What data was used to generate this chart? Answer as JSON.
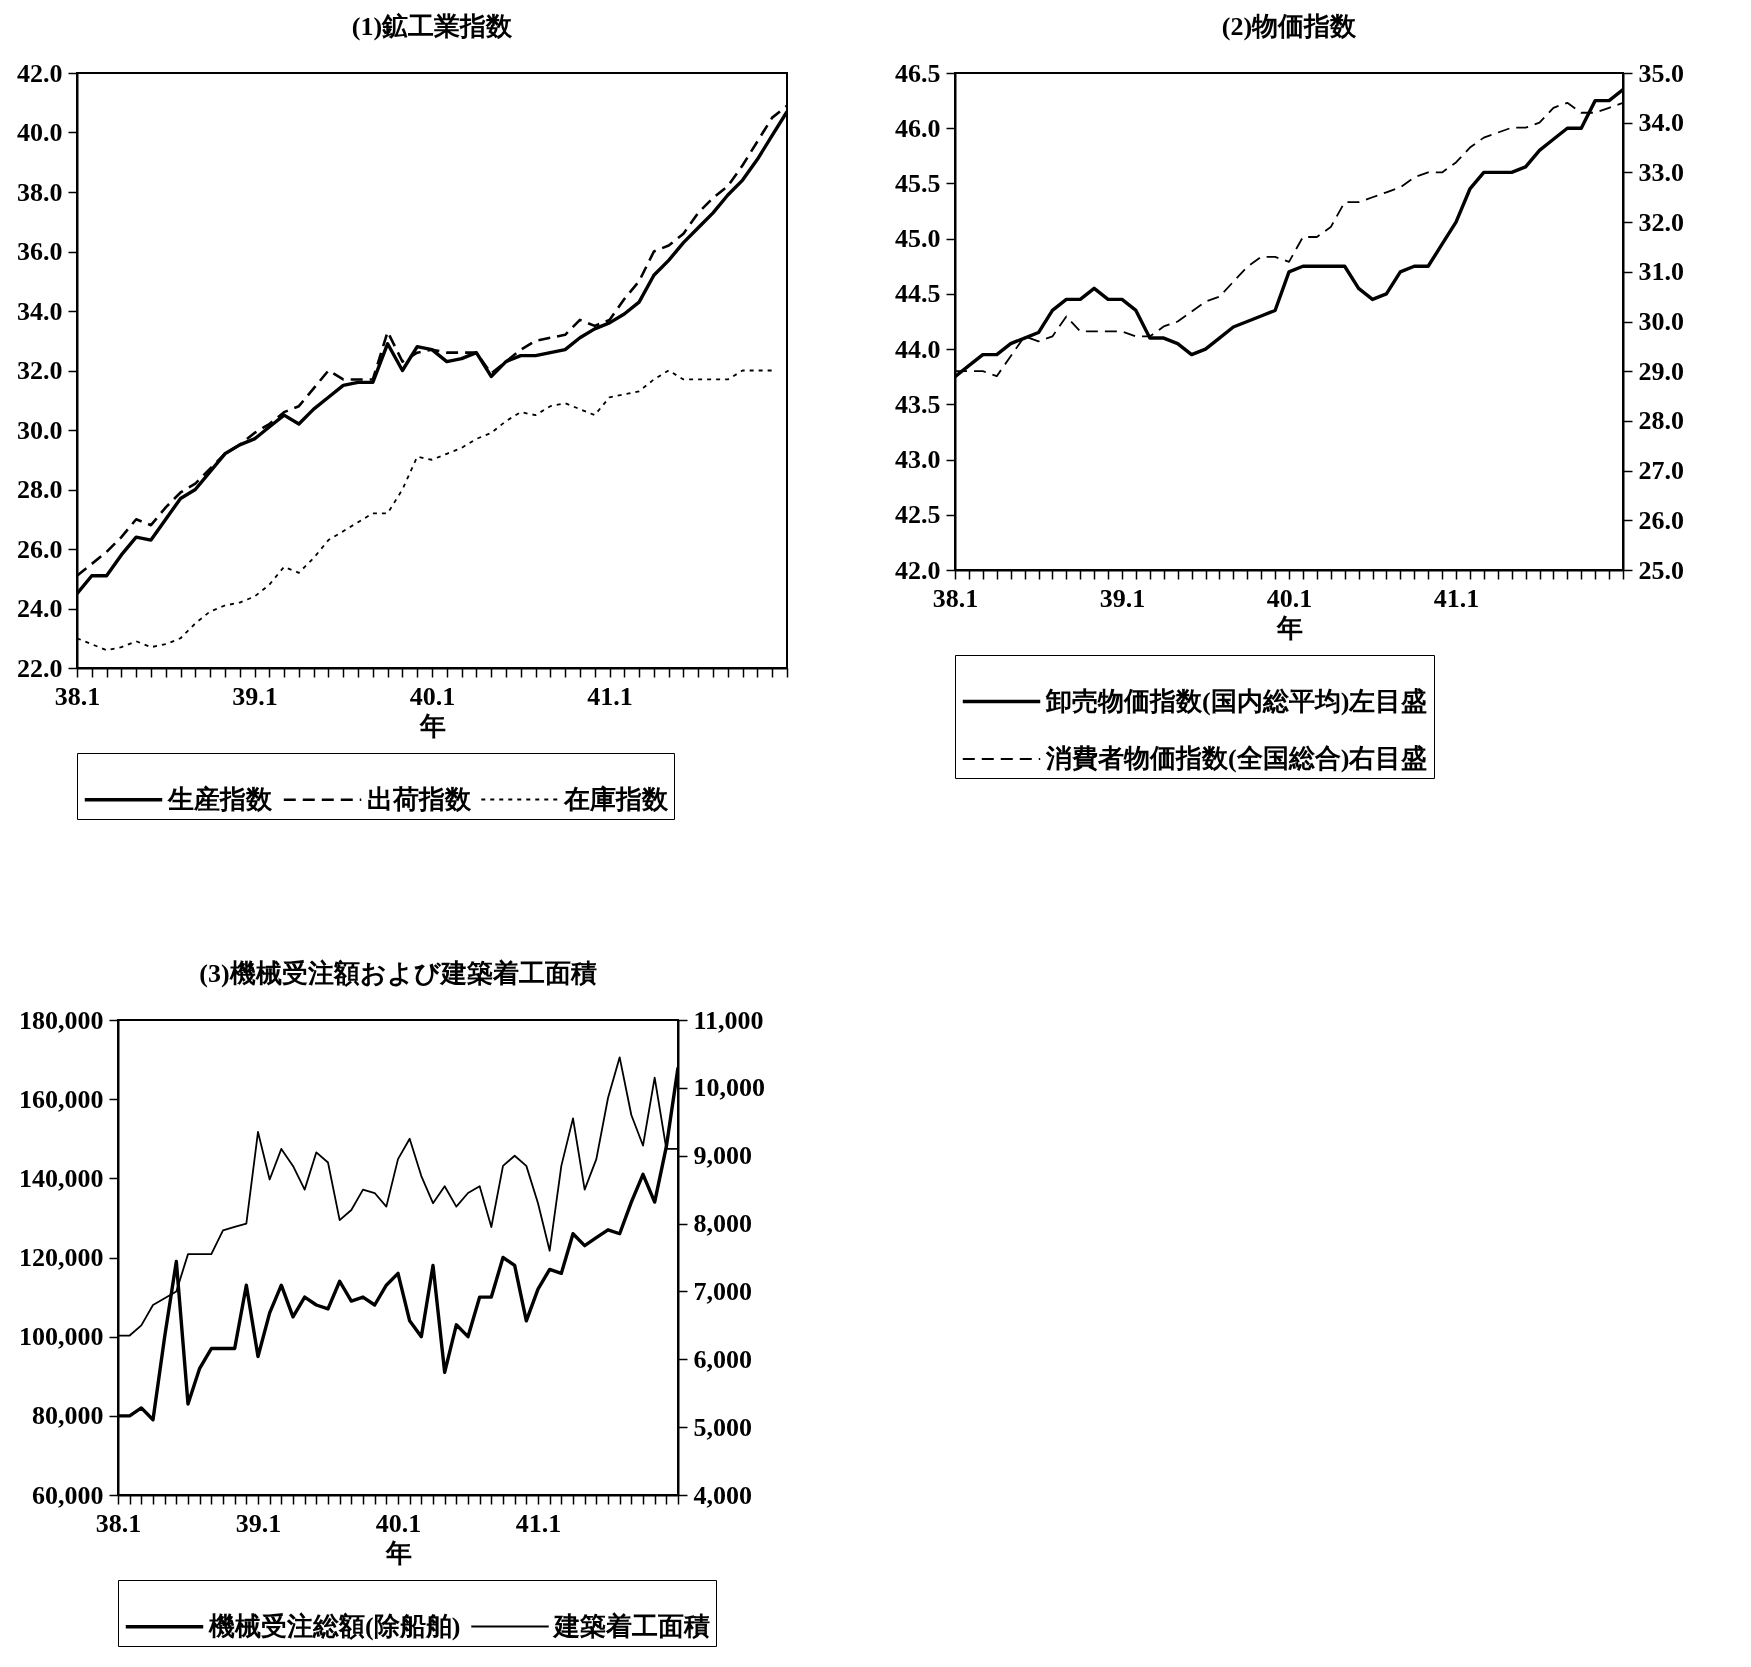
{
  "chart_data": [
    {
      "type": "line",
      "title": "(1)鉱工業指数",
      "xlabel": "年",
      "legend": "bottom",
      "categories": [
        "38.1",
        null,
        null,
        null,
        null,
        null,
        null,
        null,
        null,
        null,
        null,
        null,
        "39.1",
        null,
        null,
        null,
        null,
        null,
        null,
        null,
        null,
        null,
        null,
        null,
        "40.1",
        null,
        null,
        null,
        null,
        null,
        null,
        null,
        null,
        null,
        null,
        null,
        "41.1",
        null,
        null,
        null,
        null,
        null,
        null,
        null,
        null,
        null,
        null,
        null,
        null
      ],
      "ylim": [
        22,
        42
      ],
      "yticks": [
        {
          "value": 22,
          "label": "22.0"
        },
        {
          "value": 24,
          "label": "24.0"
        },
        {
          "value": 26,
          "label": "26.0"
        },
        {
          "value": 28,
          "label": "28.0"
        },
        {
          "value": 30,
          "label": "30.0"
        },
        {
          "value": 32,
          "label": "32.0"
        },
        {
          "value": 34,
          "label": "34.0"
        },
        {
          "value": 36,
          "label": "36.0"
        },
        {
          "value": 38,
          "label": "38.0"
        },
        {
          "value": 40,
          "label": "40.0"
        },
        {
          "value": 42,
          "label": "42.0"
        }
      ],
      "series": [
        {
          "name": "生産指数",
          "color": "#000000",
          "line_style": "solid",
          "values": [
            24.5,
            25.1,
            25.1,
            25.8,
            26.4,
            26.3,
            27.0,
            27.7,
            28.0,
            28.6,
            29.2,
            29.5,
            29.7,
            30.1,
            30.5,
            30.2,
            30.7,
            31.1,
            31.5,
            31.6,
            31.6,
            32.9,
            32.0,
            32.8,
            32.7,
            32.3,
            32.4,
            32.6,
            31.8,
            32.3,
            32.5,
            32.5,
            32.6,
            32.7,
            33.1,
            33.4,
            33.6,
            33.9,
            34.3,
            35.2,
            35.7,
            36.3,
            36.8,
            37.3,
            37.9,
            38.4,
            39.1,
            39.9,
            40.7
          ]
        },
        {
          "name": "出荷指数",
          "color": "#000000",
          "line_style": "dashed",
          "values": [
            25.1,
            25.5,
            25.9,
            26.4,
            27.0,
            26.8,
            27.4,
            27.9,
            28.2,
            28.7,
            29.2,
            29.5,
            29.9,
            30.2,
            30.6,
            30.8,
            31.4,
            32.0,
            31.7,
            31.7,
            31.7,
            33.3,
            32.3,
            32.6,
            32.7,
            32.6,
            32.6,
            32.6,
            31.9,
            32.3,
            32.7,
            33.0,
            33.1,
            33.2,
            33.7,
            33.5,
            33.7,
            34.4,
            35.0,
            36.0,
            36.2,
            36.6,
            37.3,
            37.8,
            38.2,
            38.9,
            39.7,
            40.5,
            40.9
          ]
        },
        {
          "name": "在庫指数",
          "color": "#000000",
          "line_style": "dotted",
          "values": [
            23.0,
            22.8,
            22.6,
            22.7,
            22.9,
            22.7,
            22.8,
            23.0,
            23.5,
            23.9,
            24.1,
            24.2,
            24.4,
            24.8,
            25.4,
            25.2,
            25.7,
            26.3,
            26.6,
            26.9,
            27.2,
            27.2,
            28.0,
            29.1,
            29.0,
            29.2,
            29.4,
            29.7,
            29.9,
            30.3,
            30.6,
            30.5,
            30.8,
            30.9,
            30.7,
            30.5,
            31.1,
            31.2,
            31.3,
            31.7,
            32.0,
            31.7,
            31.7,
            31.7,
            31.7,
            32.0,
            32.0,
            32.0,
            null
          ]
        }
      ]
    },
    {
      "type": "line",
      "title": "(2)物価指数",
      "xlabel": "年",
      "legend": "bottom",
      "categories": [
        "38.1",
        null,
        null,
        null,
        null,
        null,
        null,
        null,
        null,
        null,
        null,
        null,
        "39.1",
        null,
        null,
        null,
        null,
        null,
        null,
        null,
        null,
        null,
        null,
        null,
        "40.1",
        null,
        null,
        null,
        null,
        null,
        null,
        null,
        null,
        null,
        null,
        null,
        "41.1",
        null,
        null,
        null,
        null,
        null,
        null,
        null,
        null,
        null,
        null,
        null,
        null
      ],
      "ylim": [
        42,
        46.5
      ],
      "yticks": [
        {
          "value": 42,
          "label": "42.0"
        },
        42.5,
        {
          "value": 43,
          "label": "43.0"
        },
        43.5,
        {
          "value": 44,
          "label": "44.0"
        },
        44.5,
        {
          "value": 45,
          "label": "45.0"
        },
        45.5,
        {
          "value": 46,
          "label": "46.0"
        },
        46.5
      ],
      "y2lim": [
        25,
        35
      ],
      "y2ticks": [
        {
          "value": 25,
          "label": "25.0"
        },
        {
          "value": 26,
          "label": "26.0"
        },
        {
          "value": 27,
          "label": "27.0"
        },
        {
          "value": 28,
          "label": "28.0"
        },
        {
          "value": 29,
          "label": "29.0"
        },
        {
          "value": 30,
          "label": "30.0"
        },
        {
          "value": 31,
          "label": "31.0"
        },
        {
          "value": 32,
          "label": "32.0"
        },
        {
          "value": 33,
          "label": "33.0"
        },
        {
          "value": 34,
          "label": "34.0"
        },
        {
          "value": 35,
          "label": "35.0"
        }
      ],
      "series": [
        {
          "name": "卸売物価指数(国内総平均)左目盛",
          "color": "#000000",
          "line_style": "solid",
          "values": [
            43.75,
            43.85,
            43.95,
            43.95,
            44.05,
            44.1,
            44.15,
            44.35,
            44.45,
            44.45,
            44.55,
            44.45,
            44.45,
            44.35,
            44.1,
            44.1,
            44.05,
            43.95,
            44.0,
            44.1,
            44.2,
            44.25,
            44.3,
            44.35,
            44.7,
            44.75,
            44.75,
            44.75,
            44.75,
            44.55,
            44.45,
            44.5,
            44.7,
            44.75,
            44.75,
            44.95,
            45.15,
            45.45,
            45.6,
            45.6,
            45.6,
            45.65,
            45.8,
            45.9,
            46.0,
            46.0,
            46.25,
            46.25,
            46.35
          ]
        },
        {
          "name": "消費者物価指数(全国総合)右目盛",
          "color": "#000000",
          "line_style": "dashed",
          "axis": "y2",
          "values": [
            29.0,
            29.0,
            29.0,
            28.9,
            29.3,
            29.7,
            29.6,
            29.7,
            30.1,
            29.8,
            29.8,
            29.8,
            29.8,
            29.7,
            29.7,
            29.9,
            30.0,
            30.2,
            30.4,
            30.5,
            30.8,
            31.1,
            31.3,
            31.3,
            31.2,
            31.7,
            31.7,
            31.9,
            32.4,
            32.4,
            32.5,
            32.6,
            32.7,
            32.9,
            33.0,
            33.0,
            33.2,
            33.5,
            33.7,
            33.8,
            33.9,
            33.9,
            34.0,
            34.3,
            34.4,
            34.2,
            34.2,
            34.3,
            34.4
          ]
        }
      ]
    },
    {
      "type": "line",
      "title": "(3)機械受注額および建築着工面積",
      "xlabel": "年",
      "legend": "bottom",
      "categories": [
        "38.1",
        null,
        null,
        null,
        null,
        null,
        null,
        null,
        null,
        null,
        null,
        null,
        "39.1",
        null,
        null,
        null,
        null,
        null,
        null,
        null,
        null,
        null,
        null,
        null,
        "40.1",
        null,
        null,
        null,
        null,
        null,
        null,
        null,
        null,
        null,
        null,
        null,
        "41.1",
        null,
        null,
        null,
        null,
        null,
        null,
        null,
        null,
        null,
        null,
        null,
        null
      ],
      "ylim": [
        60000,
        180000
      ],
      "yticks": [
        {
          "value": 60000,
          "label": "60,000"
        },
        {
          "value": 80000,
          "label": "80,000"
        },
        {
          "value": 100000,
          "label": "100,000"
        },
        {
          "value": 120000,
          "label": "120,000"
        },
        {
          "value": 140000,
          "label": "140,000"
        },
        {
          "value": 160000,
          "label": "160,000"
        },
        {
          "value": 180000,
          "label": "180,000"
        }
      ],
      "y2lim": [
        4000,
        11000
      ],
      "y2ticks": [
        {
          "value": 4000,
          "label": "4,000"
        },
        {
          "value": 5000,
          "label": "5,000"
        },
        {
          "value": 6000,
          "label": "6,000"
        },
        {
          "value": 7000,
          "label": "7,000"
        },
        {
          "value": 8000,
          "label": "8,000"
        },
        {
          "value": 9000,
          "label": "9,000"
        },
        {
          "value": 10000,
          "label": "10,000"
        },
        {
          "value": 11000,
          "label": "11,000"
        }
      ],
      "series": [
        {
          "name": "機械受注総額(除船舶)",
          "color": "#000000",
          "line_style": "solid",
          "values": [
            80000,
            80000,
            82000,
            79000,
            100000,
            119000,
            83000,
            92000,
            97000,
            97000,
            97000,
            113000,
            95000,
            106000,
            113000,
            105000,
            110000,
            108000,
            107000,
            114000,
            109000,
            110000,
            108000,
            113000,
            116000,
            104000,
            100000,
            118000,
            91000,
            103000,
            100000,
            110000,
            110000,
            120000,
            118000,
            104000,
            112000,
            117000,
            116000,
            126000,
            123000,
            125000,
            127000,
            126000,
            134000,
            141000,
            134000,
            148000,
            168000
          ]
        },
        {
          "name": "建築着工面積",
          "color": "#000000",
          "line_style": "solid",
          "axis": "y2",
          "values": [
            6350,
            6350,
            6500,
            6800,
            6900,
            7000,
            7550,
            7550,
            7550,
            7900,
            7950,
            8000,
            9350,
            8650,
            9100,
            8850,
            8500,
            9050,
            8900,
            8050,
            8200,
            8500,
            8450,
            8250,
            8950,
            9250,
            8700,
            8300,
            8550,
            8250,
            8450,
            8550,
            7950,
            8850,
            9000,
            8850,
            8300,
            7600,
            8850,
            9550,
            8500,
            8950,
            9850,
            10450,
            9600,
            9150,
            10150,
            9100,
            9100
          ]
        }
      ]
    }
  ]
}
